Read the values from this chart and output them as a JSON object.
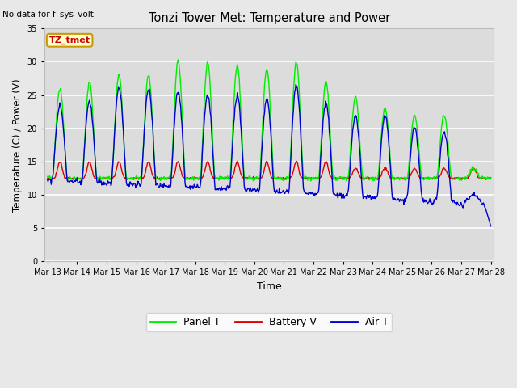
{
  "title": "Tonzi Tower Met: Temperature and Power",
  "subtitle": "No data for f_sys_volt",
  "xlabel": "Time",
  "ylabel": "Temperature (C) / Power (V)",
  "ylim": [
    0,
    35
  ],
  "yticks": [
    0,
    5,
    10,
    15,
    20,
    25,
    30,
    35
  ],
  "legend_labels": [
    "Panel T",
    "Battery V",
    "Air T"
  ],
  "annotation_text": "TZ_tmet",
  "annotation_color": "#cc0000",
  "annotation_bg": "#ffffcc",
  "annotation_border": "#cc9900",
  "fig_bg": "#e8e8e8",
  "plot_bg": "#dcdcdc",
  "grid_color": "#ffffff",
  "panel_color": "#00ee00",
  "battery_color": "#dd0000",
  "air_color": "#0000cc",
  "xtick_days": [
    13,
    14,
    15,
    16,
    17,
    18,
    19,
    20,
    21,
    22,
    23,
    24,
    25,
    26,
    27,
    28
  ]
}
